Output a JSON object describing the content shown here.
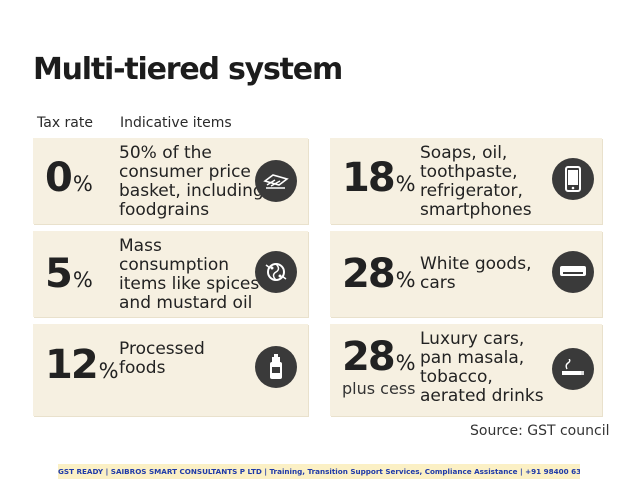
{
  "title": "Multi-tiered system",
  "headers": {
    "tax_rate": "Tax rate",
    "items": "Indicative items"
  },
  "rows": [
    {
      "rate": "0",
      "pct": "%",
      "sub": "",
      "lines": [
        "50% of the",
        "consumer price",
        "basket, including",
        "foodgrains"
      ],
      "icon": "food-plate-icon"
    },
    {
      "rate": "5",
      "pct": "%",
      "sub": "",
      "lines": [
        "Mass",
        "consumption",
        "items like spices",
        "and mustard oil"
      ],
      "icon": "spices-icon"
    },
    {
      "rate": "12",
      "pct": "%",
      "sub": "",
      "lines": [
        "Processed",
        "foods"
      ],
      "icon": "processed-food-can-icon"
    },
    {
      "rate": "18",
      "pct": "%",
      "sub": "",
      "lines": [
        "Soaps, oil,",
        "toothpaste,",
        "refrigerator,",
        "smartphones"
      ],
      "icon": "smartphone-icon"
    },
    {
      "rate": "28",
      "pct": "%",
      "sub": "",
      "lines": [
        "White goods,",
        "cars"
      ],
      "icon": "air-conditioner-icon"
    },
    {
      "rate": "28",
      "pct": "%",
      "sub": "plus cess",
      "lines": [
        "Luxury cars,",
        "pan masala,",
        "tobacco,",
        "aerated drinks"
      ],
      "icon": "cigarette-icon"
    }
  ],
  "source": "Source: GST council",
  "footer": "GST READY | SAIBROS SMART CONSULTANTS P LTD | Training, Transition Support Services, Compliance Assistance | +91 98400 63269",
  "colors": {
    "card_bg": "#f6f0e1",
    "icon_bg": "#3a3a3a",
    "footer_bg": "#fbf0c5",
    "footer_text": "#1f3aa8"
  }
}
